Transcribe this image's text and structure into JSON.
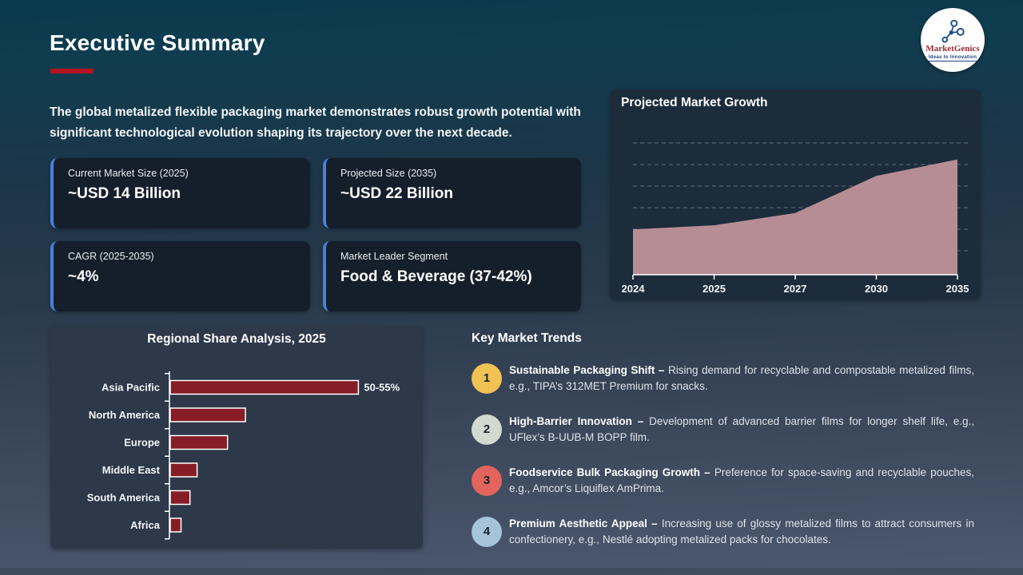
{
  "slide": {
    "title": "Executive Summary",
    "intro": "The global metalized flexible packaging market demonstrates robust growth potential with significant technological evolution shaping its trajectory over the next decade."
  },
  "logo": {
    "name": "MarketGenics",
    "tagline": "Ideas to Innovation"
  },
  "stat_cards": [
    {
      "label": "Current Market Size (2025)",
      "value": "~USD 14 Billion"
    },
    {
      "label": "Projected Size (2035)",
      "value": "~USD 22 Billion"
    },
    {
      "label": "CAGR (2025-2035)",
      "value": "~4%"
    },
    {
      "label": "Market Leader Segment",
      "value": "Food & Beverage (37-42%)"
    }
  ],
  "trends": {
    "heading": "Key Market Trends",
    "items": [
      {
        "num": "1",
        "color": "#f0c153",
        "lead": "Sustainable Packaging Shift –",
        "body": "Rising demand for recyclable and compostable metalized films, e.g., TIPA’s 312MET Premium for snacks."
      },
      {
        "num": "2",
        "color": "#d2d9cf",
        "lead": "High-Barrier Innovation –",
        "body": "Development of advanced barrier films for longer shelf life, e.g., UFlex’s B-UUB-M BOPP film."
      },
      {
        "num": "3",
        "color": "#e2645c",
        "lead": "Foodservice Bulk Packaging Growth –",
        "body": "Preference for space-saving and recyclable pouches, e.g., Amcor’s Liquiflex AmPrima."
      },
      {
        "num": "4",
        "color": "#a5c4da",
        "lead": "Premium Aesthetic Appeal –",
        "body": "Increasing use of glossy metalized films to attract consumers in confectionery, e.g., Nestlé adopting metalized packs for chocolates."
      }
    ]
  },
  "chart_data": [
    {
      "type": "area",
      "title": "Projected Market Growth",
      "x": [
        "2024",
        "2025",
        "2027",
        "2030",
        "2035"
      ],
      "values": [
        13.5,
        14,
        15.5,
        20,
        22
      ],
      "ylim": [
        8,
        24
      ],
      "xlabel": "",
      "ylabel": "",
      "grid": "horizontal-dashed",
      "area_color": "#c2949c",
      "legend": "none"
    },
    {
      "type": "bar",
      "orientation": "horizontal",
      "title": "Regional Share Analysis, 2025",
      "categories": [
        "Asia Pacific",
        "North America",
        "Europe",
        "Middle East",
        "South America",
        "Africa"
      ],
      "values": [
        52.5,
        21,
        16,
        7.5,
        5.5,
        3
      ],
      "data_labels": [
        "50-55%",
        "",
        "",
        "",
        "",
        ""
      ],
      "xlim": [
        0,
        60
      ],
      "bar_color": "#871d27",
      "bar_border_color": "#ffffff",
      "legend": "none"
    }
  ]
}
